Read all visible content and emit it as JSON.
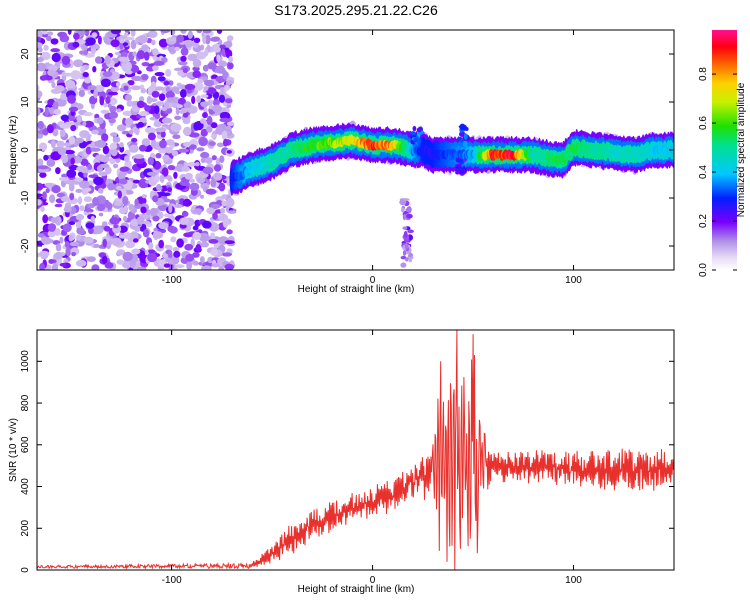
{
  "title": "S173.2025.295.21.22.C26",
  "colorbar": {
    "label": "Normalized spectral amplitude",
    "ticks": [
      0.0,
      0.2,
      0.4,
      0.6,
      0.8
    ],
    "tick_labels": [
      "0.0",
      "0.2",
      "0.4",
      "0.6",
      "0.8"
    ],
    "range": [
      0,
      0.98
    ]
  },
  "chart_data": [
    {
      "type": "heatmap",
      "title": "S173.2025.295.21.22.C26",
      "xlabel": "Height of straight line (km)",
      "ylabel": "Frequency (Hz)",
      "xlim": [
        -167,
        150
      ],
      "ylim": [
        -25,
        25
      ],
      "xticks": [
        -100,
        0,
        100
      ],
      "xtick_labels": [
        "-100",
        "0",
        "100"
      ],
      "yticks": [
        -20,
        -10,
        0,
        10,
        20
      ],
      "ytick_labels": [
        "-20",
        "-10",
        "0",
        "10",
        "20"
      ],
      "noise_region": {
        "x_range": [
          -167,
          -70
        ],
        "y_range": [
          -25,
          25
        ],
        "amplitude": 0.1
      },
      "ridge": {
        "x": [
          -70,
          -60,
          -50,
          -40,
          -30,
          -20,
          -10,
          0,
          10,
          20,
          25,
          30,
          40,
          50,
          60,
          70,
          80,
          90,
          95,
          100,
          110,
          120,
          130,
          140,
          150
        ],
        "freq": [
          -6,
          -4,
          -2.5,
          0,
          1,
          1.5,
          2,
          1,
          1,
          0,
          0,
          -1,
          -1,
          -1,
          -1,
          -1,
          -1,
          -2,
          -2,
          0.5,
          0,
          -0.5,
          -1,
          0,
          0
        ],
        "amp": [
          0.3,
          0.45,
          0.5,
          0.55,
          0.65,
          0.7,
          0.8,
          0.95,
          0.85,
          0.4,
          0.3,
          0.3,
          0.35,
          0.4,
          0.98,
          0.98,
          0.5,
          0.6,
          0.6,
          0.6,
          0.55,
          0.5,
          0.5,
          0.45,
          0.45
        ]
      },
      "scatter_patches": [
        {
          "x": 17,
          "freq": -12,
          "amp": 0.15
        },
        {
          "x": 17,
          "freq": -18,
          "amp": 0.2
        },
        {
          "x": 17,
          "freq": -22,
          "amp": 0.15
        },
        {
          "x": 44,
          "freq": -4,
          "amp": 0.3
        },
        {
          "x": 22,
          "freq": 3,
          "amp": 0.35
        },
        {
          "x": 45,
          "freq": 3,
          "amp": 0.35
        }
      ]
    },
    {
      "type": "line",
      "xlabel": "Height of straight line (km)",
      "ylabel": "SNR (10 * v/v)",
      "xlim": [
        -167,
        150
      ],
      "ylim": [
        0,
        1150
      ],
      "xticks": [
        -100,
        0,
        100
      ],
      "xtick_labels": [
        "-100",
        "0",
        "100"
      ],
      "yticks": [
        0,
        200,
        400,
        600,
        800,
        1000
      ],
      "ytick_labels": [
        "0",
        "200",
        "400",
        "600",
        "800",
        "1000"
      ],
      "color": "#e8302c",
      "envelope": {
        "x": [
          -167,
          -60,
          -50,
          -40,
          -30,
          -20,
          -10,
          0,
          10,
          20,
          30,
          32,
          40,
          50,
          55,
          60,
          80,
          100,
          120,
          140,
          150
        ],
        "baseline": [
          15,
          20,
          80,
          150,
          220,
          260,
          300,
          320,
          360,
          420,
          480,
          500,
          520,
          520,
          510,
          500,
          490,
          480,
          480,
          480,
          480
        ],
        "spread": [
          10,
          20,
          60,
          80,
          80,
          80,
          80,
          80,
          90,
          100,
          150,
          400,
          600,
          600,
          250,
          80,
          90,
          100,
          110,
          110,
          100
        ]
      },
      "notable_peaks": [
        {
          "x": 34,
          "y": 1000
        },
        {
          "x": 42,
          "y": 1150
        },
        {
          "x": 50,
          "y": 1130
        },
        {
          "x": 37,
          "y": 40
        },
        {
          "x": 52,
          "y": 80
        }
      ]
    }
  ]
}
